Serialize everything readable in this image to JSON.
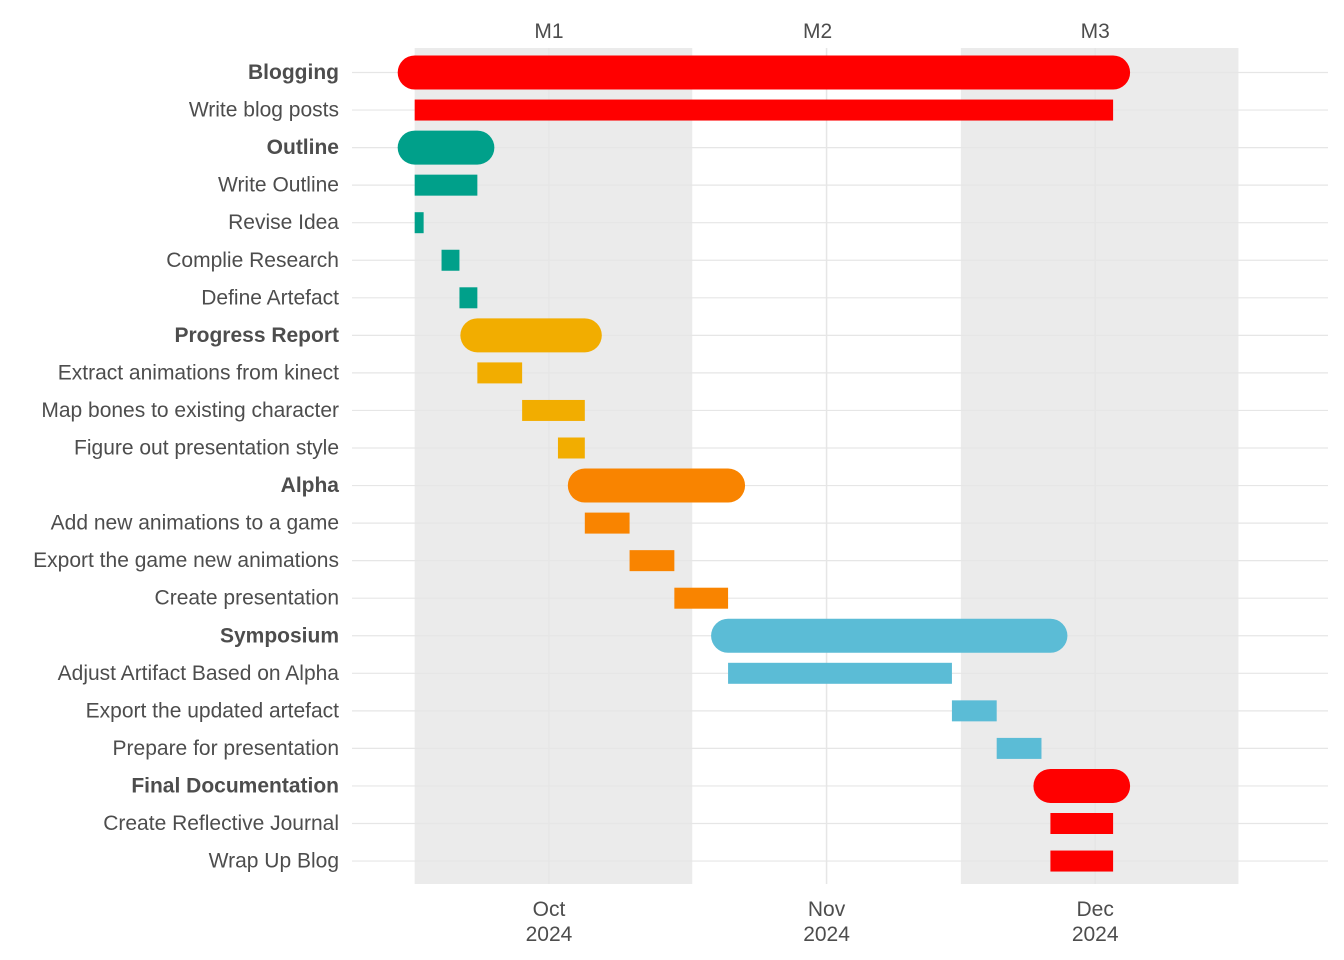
{
  "chart_data": {
    "type": "gantt",
    "title": "",
    "xlabel": "",
    "ylabel": "",
    "xlim": [
      "2024-09-09",
      "2024-12-27"
    ],
    "x_ticks": [
      {
        "date": "2024-10-01",
        "month": "Oct",
        "year": "2024"
      },
      {
        "date": "2024-11-01",
        "month": "Nov",
        "year": "2024"
      },
      {
        "date": "2024-12-01",
        "month": "Dec",
        "year": "2024"
      }
    ],
    "milestones": [
      {
        "label": "M1",
        "date": "2024-10-01"
      },
      {
        "label": "M2",
        "date": "2024-10-31"
      },
      {
        "label": "M3",
        "date": "2024-12-01"
      }
    ],
    "shaded_periods": [
      {
        "start": "2024-09-16",
        "end": "2024-10-17"
      },
      {
        "start": "2024-11-16",
        "end": "2024-12-17"
      }
    ],
    "grid": true,
    "rows": [
      {
        "label": "Blogging",
        "group": true,
        "start": "2024-09-16",
        "end": "2024-12-03",
        "color": "#FF0000"
      },
      {
        "label": "Write blog posts",
        "group": false,
        "start": "2024-09-16",
        "end": "2024-12-03",
        "color": "#FF0000"
      },
      {
        "label": "Outline",
        "group": true,
        "start": "2024-09-16",
        "end": "2024-09-23",
        "color": "#00A08A"
      },
      {
        "label": "Write Outline",
        "group": false,
        "start": "2024-09-16",
        "end": "2024-09-23",
        "color": "#00A08A"
      },
      {
        "label": "Revise Idea",
        "group": false,
        "start": "2024-09-16",
        "end": "2024-09-17",
        "color": "#00A08A"
      },
      {
        "label": "Complie Research",
        "group": false,
        "start": "2024-09-19",
        "end": "2024-09-21",
        "color": "#00A08A"
      },
      {
        "label": "Define Artefact",
        "group": false,
        "start": "2024-09-21",
        "end": "2024-09-23",
        "color": "#00A08A"
      },
      {
        "label": "Progress Report",
        "group": true,
        "start": "2024-09-23",
        "end": "2024-10-05",
        "color": "#F2AD00"
      },
      {
        "label": "Extract animations from kinect",
        "group": false,
        "start": "2024-09-23",
        "end": "2024-09-28",
        "color": "#F2AD00"
      },
      {
        "label": "Map bones to existing character",
        "group": false,
        "start": "2024-09-28",
        "end": "2024-10-05",
        "color": "#F2AD00"
      },
      {
        "label": "Figure out presentation style",
        "group": false,
        "start": "2024-10-02",
        "end": "2024-10-05",
        "color": "#F2AD00"
      },
      {
        "label": "Alpha",
        "group": true,
        "start": "2024-10-05",
        "end": "2024-10-21",
        "color": "#F98400"
      },
      {
        "label": "Add new animations to a game",
        "group": false,
        "start": "2024-10-05",
        "end": "2024-10-10",
        "color": "#F98400"
      },
      {
        "label": "Export the game new animations",
        "group": false,
        "start": "2024-10-10",
        "end": "2024-10-15",
        "color": "#F98400"
      },
      {
        "label": "Create presentation",
        "group": false,
        "start": "2024-10-15",
        "end": "2024-10-21",
        "color": "#F98400"
      },
      {
        "label": "Symposium",
        "group": true,
        "start": "2024-10-21",
        "end": "2024-11-26",
        "color": "#5BBCD6"
      },
      {
        "label": "Adjust Artifact Based on Alpha",
        "group": false,
        "start": "2024-10-21",
        "end": "2024-11-15",
        "color": "#5BBCD6"
      },
      {
        "label": "Export the updated artefact",
        "group": false,
        "start": "2024-11-15",
        "end": "2024-11-20",
        "color": "#5BBCD6"
      },
      {
        "label": "Prepare for presentation",
        "group": false,
        "start": "2024-11-20",
        "end": "2024-11-25",
        "color": "#5BBCD6"
      },
      {
        "label": "Final Documentation",
        "group": true,
        "start": "2024-11-26",
        "end": "2024-12-03",
        "color": "#FF0000"
      },
      {
        "label": "Create Reflective Journal",
        "group": false,
        "start": "2024-11-26",
        "end": "2024-12-03",
        "color": "#FF0000"
      },
      {
        "label": "Wrap Up Blog",
        "group": false,
        "start": "2024-11-26",
        "end": "2024-12-03",
        "color": "#FF0000"
      }
    ]
  }
}
